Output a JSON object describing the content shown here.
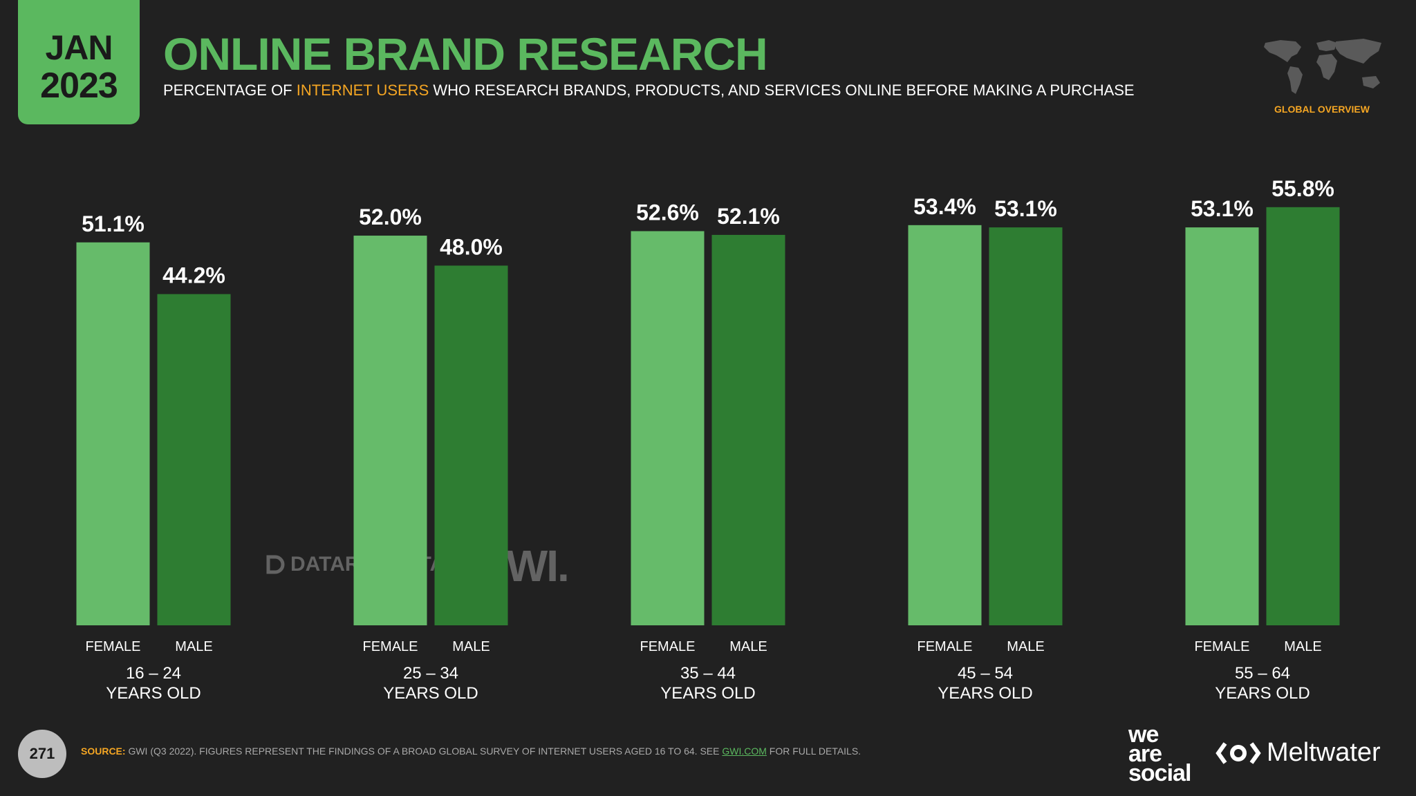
{
  "header": {
    "month": "JAN",
    "year": "2023",
    "title": "ONLINE BRAND RESEARCH",
    "subtitle_pre": "PERCENTAGE OF ",
    "subtitle_highlight": "INTERNET USERS",
    "subtitle_post": " WHO RESEARCH BRANDS, PRODUCTS, AND SERVICES ONLINE BEFORE MAKING A PURCHASE",
    "region_label": "GLOBAL OVERVIEW"
  },
  "colors": {
    "accent": "#5bb85f",
    "female": "#66bb6a",
    "male": "#2e7d32",
    "highlight": "#f5a623",
    "background": "#212121"
  },
  "chart_data": {
    "type": "bar",
    "categories": [
      "16 – 24",
      "25 – 34",
      "35 – 44",
      "45 – 54",
      "55 – 64"
    ],
    "category_suffix": "YEARS OLD",
    "series": [
      {
        "name": "FEMALE",
        "values": [
          51.1,
          52.0,
          52.6,
          53.4,
          53.1
        ]
      },
      {
        "name": "MALE",
        "values": [
          44.2,
          48.0,
          52.1,
          53.1,
          55.8
        ]
      }
    ],
    "value_labels": {
      "FEMALE": [
        "51.1%",
        "52.0%",
        "52.6%",
        "53.4%",
        "53.1%"
      ],
      "MALE": [
        "44.2%",
        "48.0%",
        "52.1%",
        "53.1%",
        "55.8%"
      ]
    },
    "ylim": [
      0,
      60
    ],
    "grid": false,
    "unit": "%"
  },
  "watermarks": {
    "datareportal": "DATAREPORTAL",
    "gwi": "GWI."
  },
  "footer": {
    "page_number": "271",
    "source_label": "SOURCE:",
    "source_text": " GWI (Q3 2022). FIGURES REPRESENT THE FINDINGS OF A BROAD GLOBAL SURVEY OF INTERNET USERS AGED 16 TO 64. SEE ",
    "source_link": "GWI.COM",
    "source_tail": " FOR FULL DETAILS.",
    "brand_we": "we",
    "brand_are": "are",
    "brand_social": "social",
    "brand_meltwater": "Meltwater"
  }
}
